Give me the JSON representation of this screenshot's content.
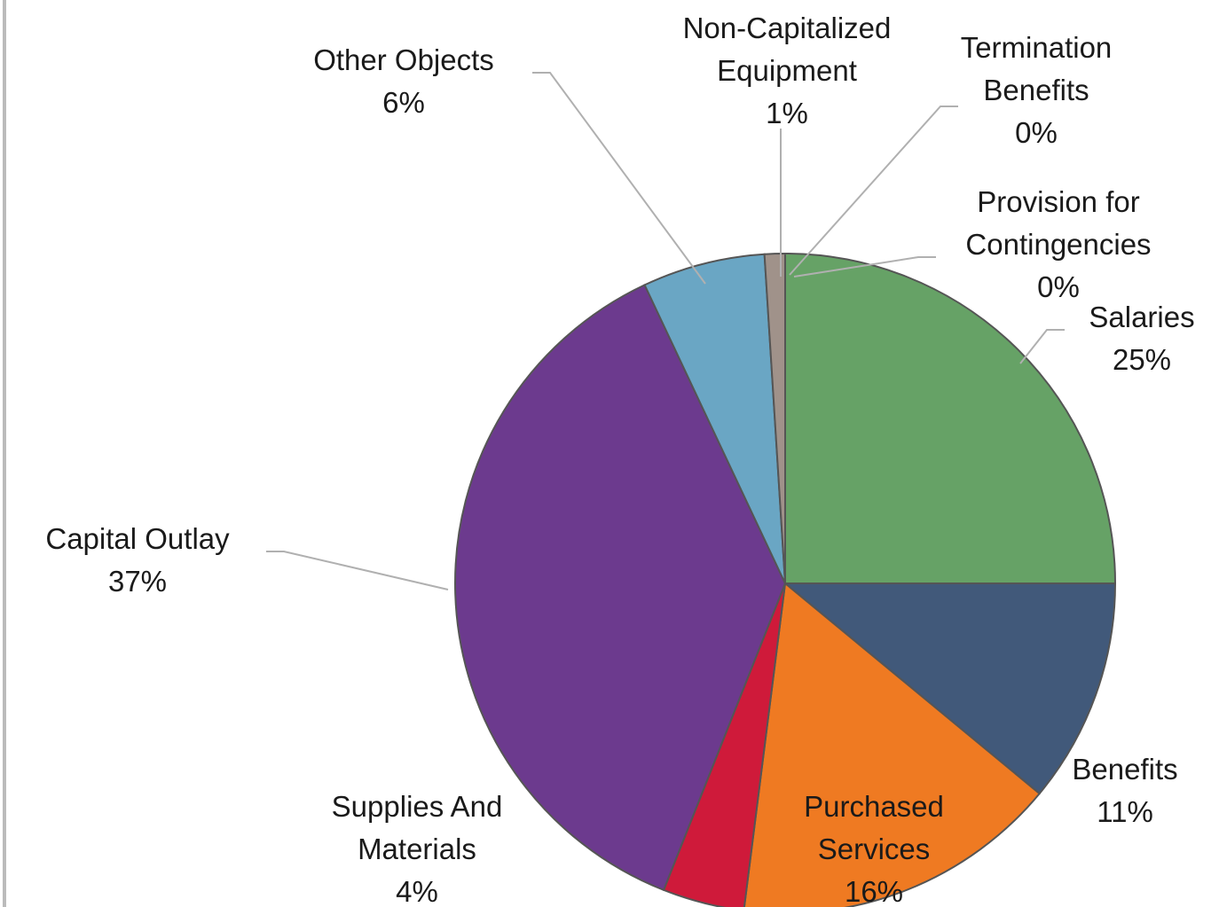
{
  "chart_data": {
    "type": "pie",
    "categories": [
      "Salaries",
      "Benefits",
      "Purchased Services",
      "Supplies And Materials",
      "Capital Outlay",
      "Other Objects",
      "Non-Capitalized Equipment",
      "Termination Benefits",
      "Provision for Contingencies"
    ],
    "values": [
      25,
      11,
      16,
      4,
      37,
      6,
      1,
      0,
      0
    ],
    "value_labels": [
      "25%",
      "11%",
      "16%",
      "4%",
      "37%",
      "6%",
      "1%",
      "0%",
      "0%"
    ],
    "colors": [
      "#66a266",
      "#41597a",
      "#ef7a22",
      "#cf1a3a",
      "#6c3a8e",
      "#6aa6c4",
      "#a0928a",
      "#c8c8c8",
      "#8a8a8a"
    ]
  }
}
